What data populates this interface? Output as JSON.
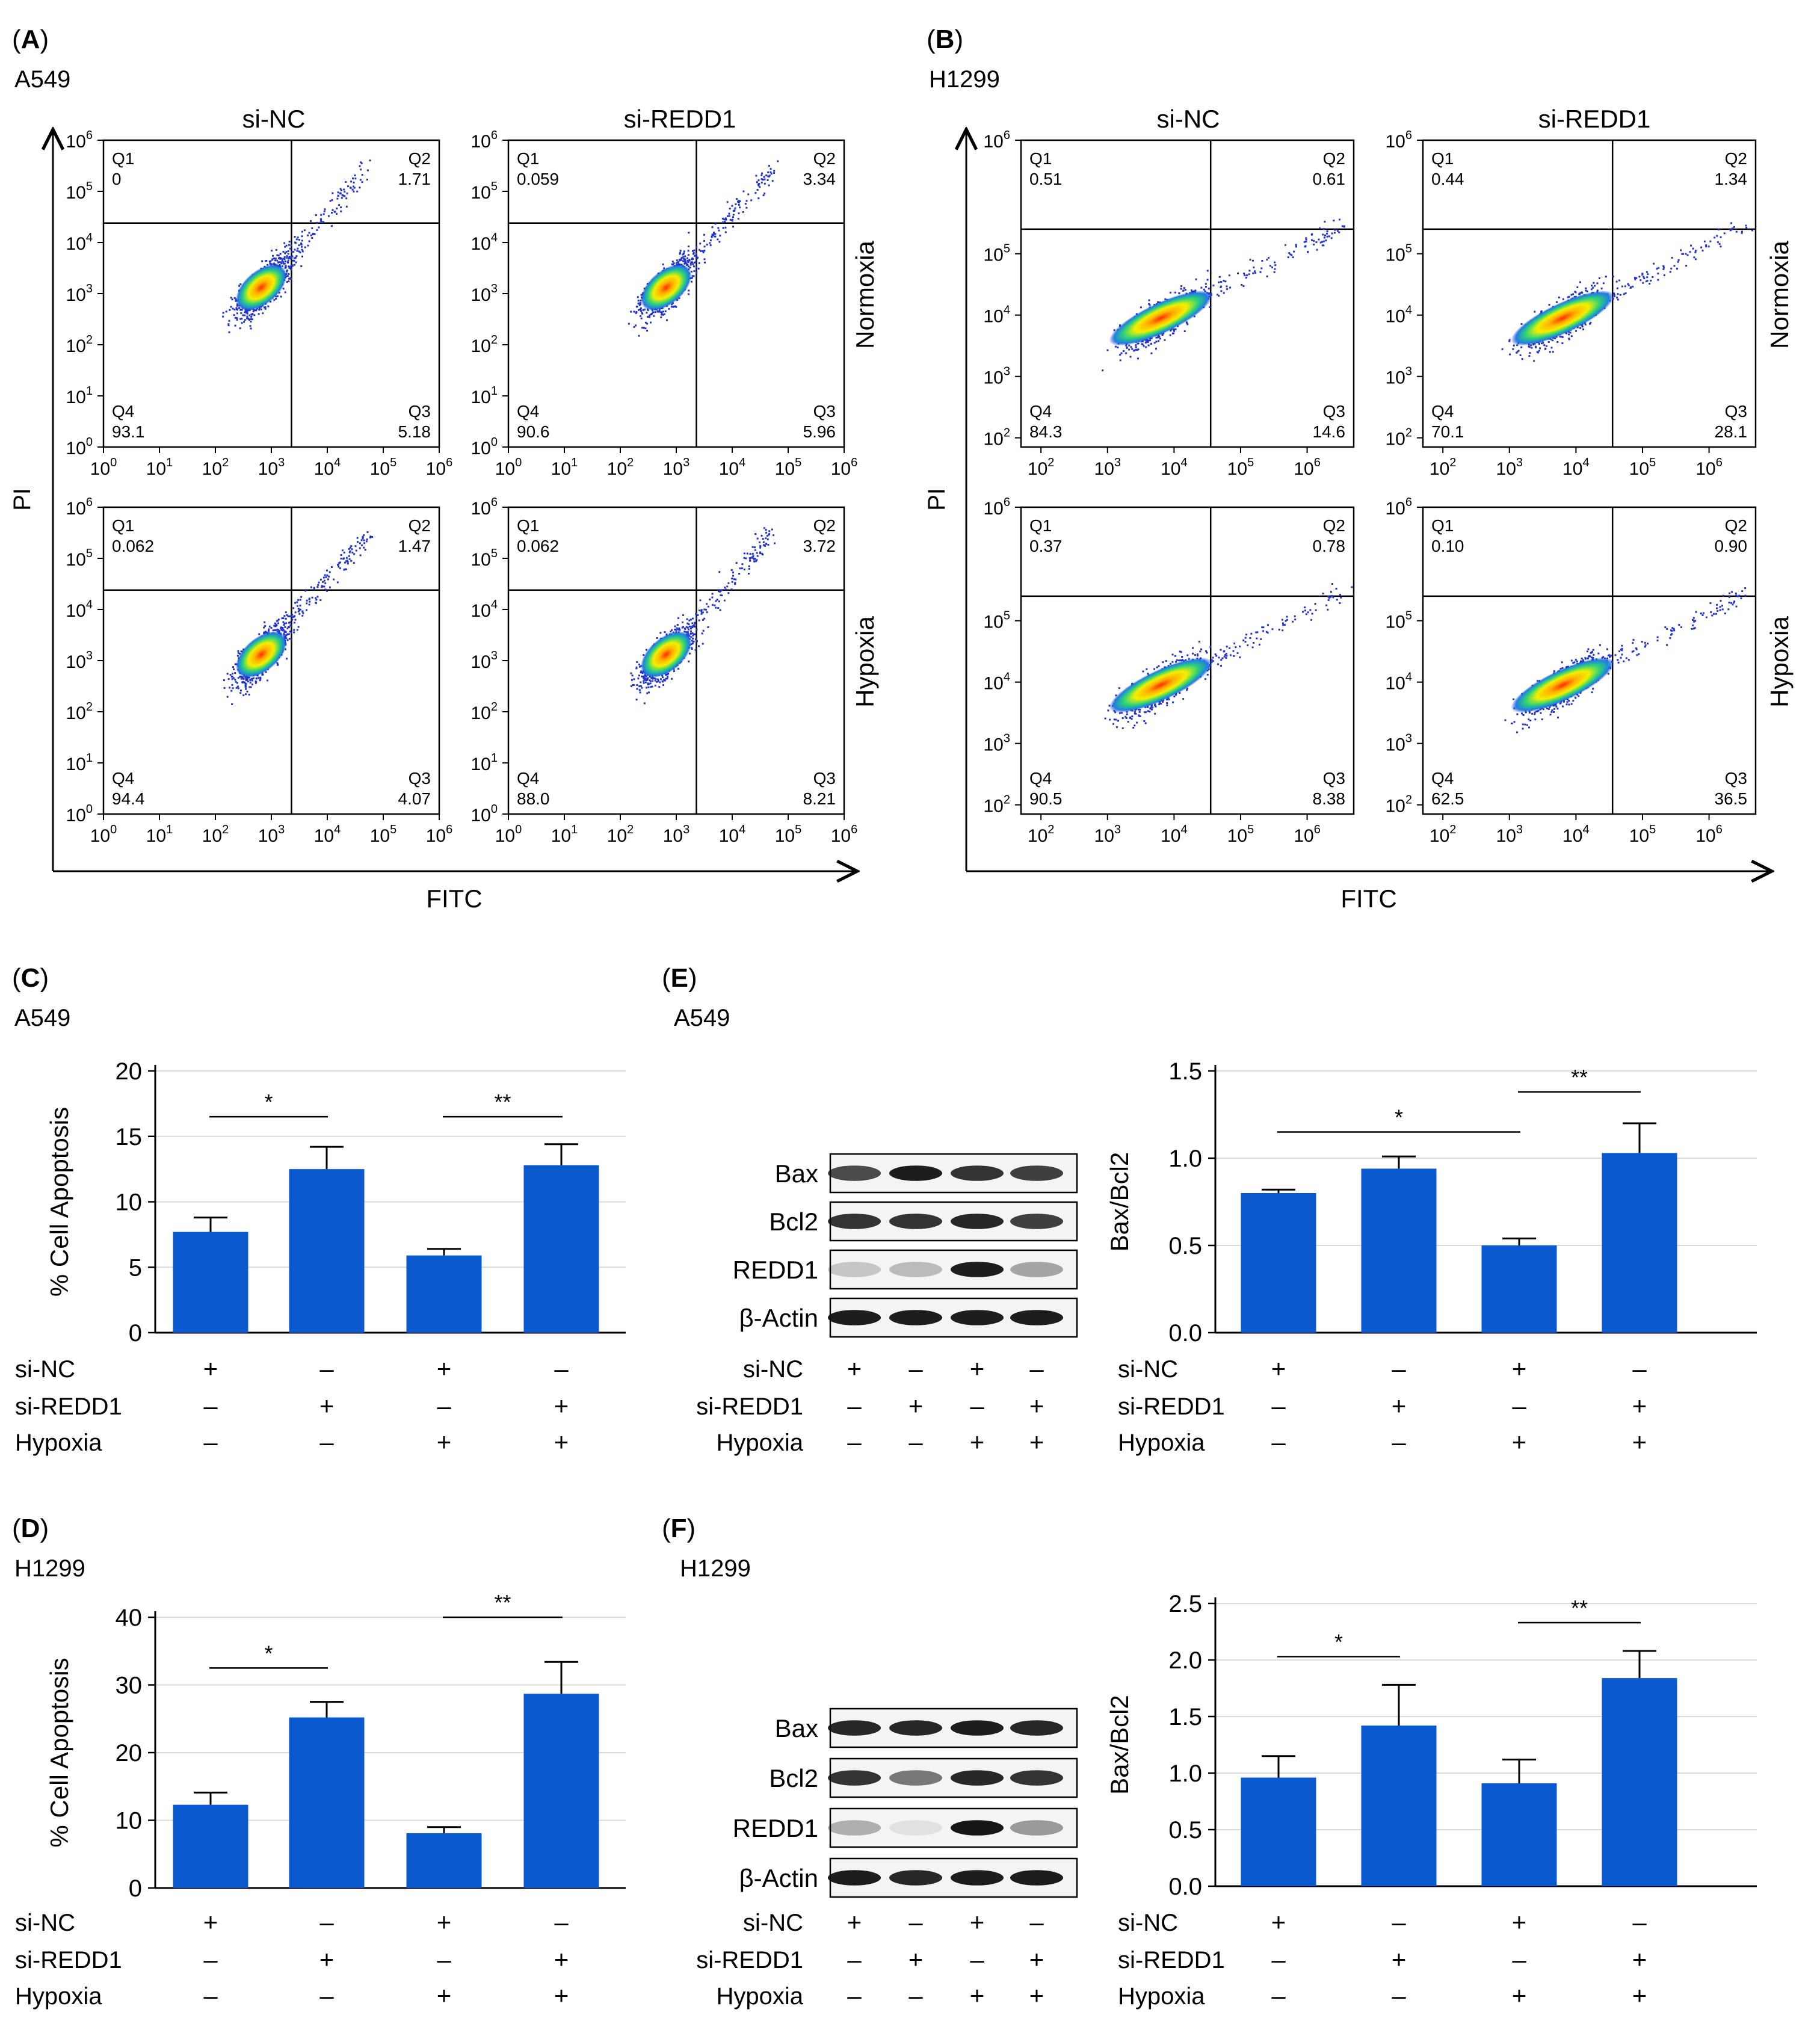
{
  "colors": {
    "bar": "#0a59cf",
    "axis": "#000000",
    "grid": "#d9d9d9"
  },
  "panels": {
    "A": {
      "letter": "A",
      "cell_line": "A549",
      "x_axis": "FITC",
      "y_axis": "PI"
    },
    "B": {
      "letter": "B",
      "cell_line": "H1299",
      "x_axis": "FITC",
      "y_axis": "PI"
    },
    "C": {
      "letter": "C",
      "cell_line": "A549"
    },
    "D": {
      "letter": "D",
      "cell_line": "H1299"
    },
    "E": {
      "letter": "E",
      "cell_line": "A549"
    },
    "F": {
      "letter": "F",
      "cell_line": "H1299"
    }
  },
  "flow": {
    "columns": [
      "si-NC",
      "si-REDD1"
    ],
    "rows": [
      "Normoxia",
      "Hypoxia"
    ],
    "quadrant_names": [
      "Q1",
      "Q2",
      "Q3",
      "Q4"
    ],
    "A549": {
      "ticks": [
        "10",
        "10",
        "10",
        "10",
        "10",
        "10",
        "10"
      ],
      "exponents": [
        "0",
        "1",
        "2",
        "3",
        "4",
        "5",
        "6"
      ],
      "plots": [
        {
          "q1": "0",
          "q2": "1.71",
          "q3": "5.18",
          "q4": "93.1"
        },
        {
          "q1": "0.059",
          "q2": "3.34",
          "q3": "5.96",
          "q4": "90.6"
        },
        {
          "q1": "0.062",
          "q2": "1.47",
          "q3": "4.07",
          "q4": "94.4"
        },
        {
          "q1": "0.062",
          "q2": "3.72",
          "q3": "8.21",
          "q4": "88.0"
        }
      ]
    },
    "H1299": {
      "x_ticks": [
        "10",
        "10",
        "10",
        "10",
        "10"
      ],
      "x_exponents": [
        "2",
        "3",
        "4",
        "5",
        "6"
      ],
      "y_ticks": [
        "10",
        "10",
        "10",
        "10",
        "10"
      ],
      "y_exponents": [
        "2",
        "3",
        "4",
        "5",
        "6"
      ],
      "plots": [
        {
          "q1": "0.51",
          "q2": "0.61",
          "q3": "14.6",
          "q4": "84.3"
        },
        {
          "q1": "0.44",
          "q2": "1.34",
          "q3": "28.1",
          "q4": "70.1"
        },
        {
          "q1": "0.37",
          "q2": "0.78",
          "q3": "8.38",
          "q4": "90.5"
        },
        {
          "q1": "0.10",
          "q2": "0.90",
          "q3": "36.5",
          "q4": "62.5"
        }
      ]
    }
  },
  "conditions": {
    "labels": [
      "si-NC",
      "si-REDD1",
      "Hypoxia"
    ],
    "signs": [
      [
        "+",
        "–",
        "+",
        "–"
      ],
      [
        "–",
        "+",
        "–",
        "+"
      ],
      [
        "–",
        "–",
        "+",
        "+"
      ]
    ]
  },
  "blot": {
    "bands": [
      "Bax",
      "Bcl2",
      "REDD1",
      "β-Actin"
    ]
  },
  "chart_data": [
    {
      "id": "C",
      "type": "bar",
      "title": "A549",
      "ylabel": "% Cell Apoptosis",
      "ylim": [
        0,
        20
      ],
      "yticks": [
        "0",
        "5",
        "10",
        "15",
        "20"
      ],
      "values": [
        7.7,
        12.5,
        5.9,
        12.8
      ],
      "errors": [
        1.1,
        1.7,
        0.5,
        1.6
      ],
      "significance": [
        {
          "from": 0,
          "to": 1,
          "label": "*"
        },
        {
          "from": 2,
          "to": 3,
          "label": "**"
        }
      ]
    },
    {
      "id": "D",
      "type": "bar",
      "title": "H1299",
      "ylabel": "% Cell Apoptosis",
      "ylim": [
        0,
        40
      ],
      "yticks": [
        "0",
        "10",
        "20",
        "30",
        "40"
      ],
      "values": [
        12.3,
        25.2,
        8.1,
        28.7
      ],
      "errors": [
        1.8,
        2.3,
        0.9,
        4.7
      ],
      "significance": [
        {
          "from": 0,
          "to": 1,
          "label": "*"
        },
        {
          "from": 2,
          "to": 3,
          "label": "**"
        }
      ]
    },
    {
      "id": "E",
      "type": "bar",
      "title": "A549",
      "ylabel": "Bax/Bcl2",
      "ylim": [
        0,
        1.5
      ],
      "yticks": [
        "0.0",
        "0.5",
        "1.0",
        "1.5"
      ],
      "values": [
        0.8,
        0.94,
        0.5,
        1.03
      ],
      "errors": [
        0.02,
        0.07,
        0.04,
        0.17
      ],
      "significance": [
        {
          "from": 0,
          "to": 2,
          "label": "*"
        },
        {
          "from": 2,
          "to": 3,
          "label": "**"
        }
      ]
    },
    {
      "id": "F",
      "type": "bar",
      "title": "H1299",
      "ylabel": "Bax/Bcl2",
      "ylim": [
        0,
        2.5
      ],
      "yticks": [
        "0.0",
        "0.5",
        "1.0",
        "1.5",
        "2.0",
        "2.5"
      ],
      "values": [
        0.96,
        1.42,
        0.91,
        1.84
      ],
      "errors": [
        0.19,
        0.36,
        0.21,
        0.24
      ],
      "significance": [
        {
          "from": 0,
          "to": 1,
          "label": "*"
        },
        {
          "from": 2,
          "to": 3,
          "label": "**"
        }
      ]
    }
  ]
}
